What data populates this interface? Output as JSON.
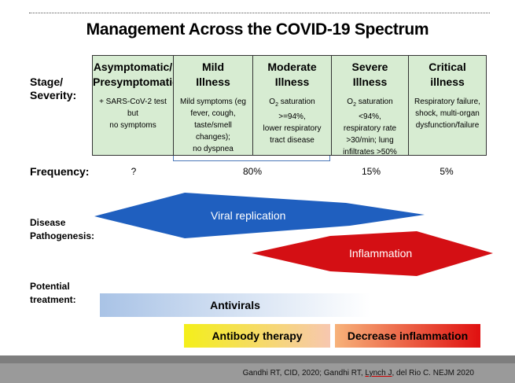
{
  "title": "Management Across the COVID-19 Spectrum",
  "labels": {
    "stage": "Stage/\nSeverity:",
    "frequency": "Frequency:",
    "pathogenesis": "Disease\nPathogenesis:",
    "treatment": "Potential\ntreatment:"
  },
  "stages": [
    {
      "name": "Asymptomatic/\nPresymptomatic",
      "desc": "+ SARS-CoV-2 test but\nno symptoms"
    },
    {
      "name": "Mild\nIllness",
      "desc": "Mild symptoms (eg\nfever, cough,\ntaste/smell changes);\nno dyspnea"
    },
    {
      "name": "Moderate\nIllness",
      "desc_prefix": "O",
      "desc_sub": "2",
      "desc_rest": " saturation >=94%,\nlower respiratory\ntract disease"
    },
    {
      "name": "Severe\nIllness",
      "desc_prefix": "O",
      "desc_sub": "2",
      "desc_rest": " saturation <94%,\nrespiratory rate\n>30/min; lung\ninfiltrates >50%"
    },
    {
      "name": "Critical\nillness",
      "desc": "Respiratory failure,\nshock, multi-organ\ndysfunction/failure"
    }
  ],
  "frequency": {
    "asymptomatic": "?",
    "mild_moderate": "80%",
    "severe": "15%",
    "critical": "5%"
  },
  "pathogenesis": {
    "viral": "Viral replication",
    "inflammation": "Inflammation"
  },
  "treatments": {
    "antivirals": "Antivirals",
    "antibody": "Antibody therapy",
    "decrease_inflammation": "Decrease inflammation"
  },
  "citation": {
    "part1": "Gandhi RT, CID, 2020; Gandhi RT, ",
    "underlined": "Lynch J",
    "part2": ", del Rio C. NEJM 2020"
  },
  "colors": {
    "stage_fill": "#d7ecd2",
    "viral_arrow": "#1f5fbf",
    "inflammation_arrow": "#d40f14",
    "antivirals_gradient": [
      "#a9c3e6",
      "#ffffff"
    ],
    "antibody_gradient": [
      "#f4ef1a",
      "#f7c7b0"
    ],
    "inflammation_gradient": [
      "#f7b27a",
      "#e01010"
    ],
    "footer": "#9a9a9a"
  }
}
